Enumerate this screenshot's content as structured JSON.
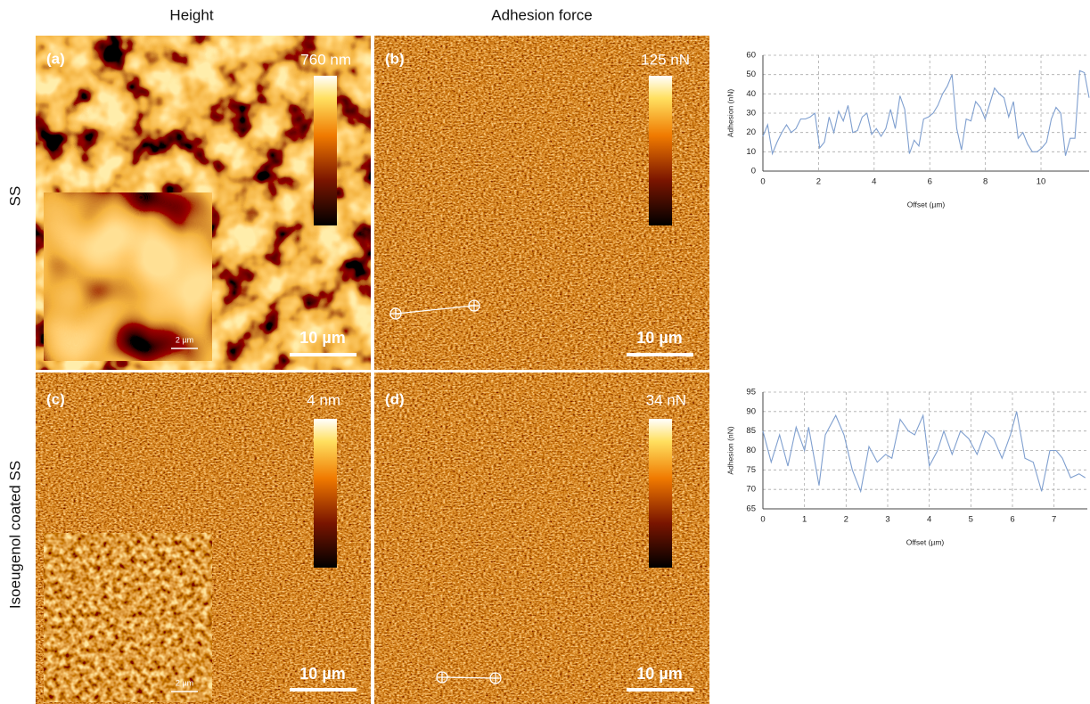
{
  "figure": {
    "columns": [
      "Height",
      "Adhesion force"
    ],
    "rows": [
      "SS",
      "Isoeugenol coated SS"
    ],
    "panels": [
      {
        "label": "(a)",
        "scale_max": "760 nm",
        "scale_bar": "10 µm",
        "inset_scale": "2 µm"
      },
      {
        "label": "(b)",
        "scale_max": "125 nN",
        "scale_bar": "10 µm"
      },
      {
        "label": "(c)",
        "scale_max": "4 nm",
        "scale_bar": "10 µm",
        "inset_scale": "2 µm"
      },
      {
        "label": "(d)",
        "scale_max": "34 nN",
        "scale_bar": "10 µm"
      }
    ]
  },
  "chart_data": [
    {
      "type": "line",
      "xlabel": "Offset (µm)",
      "ylabel": "Adhesion (nN)",
      "color": "#7f9fcf",
      "grid": true,
      "x": [
        0,
        0.17,
        0.34,
        0.51,
        0.68,
        0.85,
        1.02,
        1.19,
        1.36,
        1.53,
        1.7,
        1.87,
        2.04,
        2.21,
        2.38,
        2.55,
        2.72,
        2.89,
        3.06,
        3.23,
        3.4,
        3.57,
        3.74,
        3.91,
        4.08,
        4.25,
        4.42,
        4.59,
        4.76,
        4.93,
        5.1,
        5.27,
        5.44,
        5.61,
        5.78,
        5.95,
        6.12,
        6.29,
        6.46,
        6.63,
        6.8,
        6.97,
        7.14,
        7.31,
        7.48,
        7.65,
        7.82,
        7.99,
        8.16,
        8.33,
        8.5,
        8.67,
        8.84,
        9.01,
        9.18,
        9.35,
        9.52,
        9.69,
        9.86,
        10.03,
        10.2,
        10.37,
        10.54,
        10.71,
        10.88,
        11.05,
        11.22,
        11.39,
        11.56,
        11.73
      ],
      "values": [
        18,
        24,
        9,
        15,
        20,
        24,
        20,
        22,
        27,
        27,
        28,
        30,
        12,
        15,
        28,
        20,
        31,
        26,
        34,
        20,
        21,
        28,
        30,
        19,
        22,
        18,
        22,
        32,
        22,
        39,
        32,
        9,
        16,
        13,
        27,
        28,
        30,
        34,
        40,
        44,
        50,
        22,
        11,
        27,
        26,
        36,
        33,
        27,
        35,
        43,
        40,
        38,
        28,
        36,
        17,
        20,
        14,
        10,
        10,
        12,
        15,
        27,
        33,
        30,
        8,
        17,
        17,
        52,
        51,
        38
      ],
      "xlim": [
        0,
        11.73
      ],
      "ylim": [
        0,
        60
      ],
      "xticks": [
        0,
        2,
        4,
        6,
        8,
        10
      ],
      "yticks": [
        0,
        10,
        20,
        30,
        40,
        50,
        60
      ]
    },
    {
      "type": "line",
      "xlabel": "Offset (µm)",
      "ylabel": "Adhesion (nN)",
      "color": "#7f9fcf",
      "grid": true,
      "x": [
        0,
        0.2,
        0.4,
        0.6,
        0.8,
        1.0,
        1.1,
        1.35,
        1.5,
        1.75,
        1.95,
        2.15,
        2.35,
        2.55,
        2.75,
        2.95,
        3.1,
        3.3,
        3.5,
        3.65,
        3.85,
        4.0,
        4.2,
        4.35,
        4.55,
        4.75,
        4.95,
        5.15,
        5.35,
        5.55,
        5.75,
        5.95,
        6.1,
        6.3,
        6.5,
        6.7,
        6.9,
        7.05,
        7.2,
        7.4,
        7.6,
        7.75
      ],
      "values": [
        85,
        77,
        84,
        76,
        86,
        80,
        86,
        71,
        84,
        89,
        84,
        75,
        69.5,
        81,
        77,
        79,
        78,
        88,
        85,
        84,
        89,
        76,
        80,
        85,
        79,
        85,
        83,
        79,
        85,
        83,
        78,
        84,
        90,
        78,
        77,
        69.5,
        80,
        80,
        78,
        73,
        74,
        73
      ],
      "xlim": [
        0,
        7.8
      ],
      "ylim": [
        65,
        95
      ],
      "xticks": [
        0,
        1,
        2,
        3,
        4,
        5,
        6,
        7
      ],
      "yticks": [
        65,
        70,
        75,
        80,
        85,
        90,
        95
      ]
    }
  ]
}
